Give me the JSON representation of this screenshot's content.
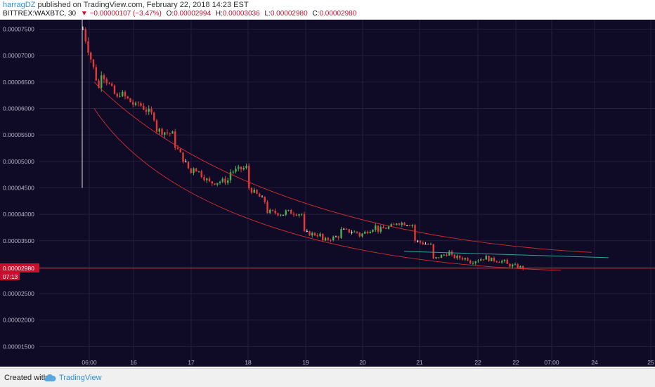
{
  "header": {
    "user": "harragDZ",
    "published": "published on TradingView.com, February 22, 2018 14:23 EST",
    "symbol": "BITTREX:WAXBTC, 30",
    "change_arrow": "▼",
    "change": "−0.00000107 (−3.47%)",
    "o_label": "O:",
    "o_value": "0.00002994",
    "h_label": "H:",
    "h_value": "0.00003036",
    "l_label": "L:",
    "l_value": "0.00002980",
    "c_label": "C:",
    "c_value": "0.00002980"
  },
  "footer": {
    "created_with": "Created with",
    "brand": "TradingView"
  },
  "chart_data": {
    "type": "candlestick",
    "symbol": "BITTREX:WAXBTC",
    "interval": "30",
    "y_ticks": [
      "0.00007500",
      "0.00007000",
      "0.00006500",
      "0.00006000",
      "0.00005500",
      "0.00005000",
      "0.00004500",
      "0.00004000",
      "0.00003500",
      "0.00003000",
      "0.00002500",
      "0.00002000",
      "0.00001500"
    ],
    "x_ticks": [
      "06:00",
      "16",
      "17",
      "18",
      "19",
      "20",
      "21",
      "22",
      "22",
      "07:00",
      "24",
      "25"
    ],
    "ylim": [
      1.12e-05,
      7.68e-05
    ],
    "last_price": "0.00002980",
    "countdown": "07:13",
    "grid": true,
    "background": "#0f0a26",
    "colors": {
      "up": "#4caf50",
      "down": "#e53935",
      "doji": "#e0e0e0",
      "curve": "#d32f2f",
      "trend": "#26a69a",
      "price_line": "#d32f2f"
    },
    "price_anchors": [
      [
        7.5e-05,
        6.2e-05
      ],
      [
        6.7e-05,
        6.1e-05
      ],
      [
        6.3e-05,
        6e-05
      ],
      [
        6.1e-05,
        5.8e-05
      ],
      [
        5.6e-05,
        5.5e-05
      ],
      [
        5.3e-05,
        4.7e-05
      ],
      [
        4.9e-05,
        4.55e-05
      ],
      [
        4.6e-05,
        4.65e-05
      ],
      [
        4.8e-05,
        4.9e-05
      ],
      [
        4.5e-05,
        4.2e-05
      ],
      [
        4.05e-05,
        4e-05
      ],
      [
        4.05e-05,
        4e-05
      ],
      [
        3.65e-05,
        3.6e-05
      ],
      [
        3.5e-05,
        3.6e-05
      ],
      [
        3.7e-05,
        3.65e-05
      ],
      [
        3.6e-05,
        3.8e-05
      ],
      [
        3.7e-05,
        3.8e-05
      ],
      [
        3.85e-05,
        3.8e-05
      ],
      [
        3.5e-05,
        3.4e-05
      ],
      [
        3.15e-05,
        3.3e-05
      ],
      [
        3.2e-05,
        3.15e-05
      ],
      [
        3.1e-05,
        3.2e-05
      ],
      [
        3.15e-05,
        3.1e-05
      ],
      [
        3.05e-05,
        2.98e-05
      ]
    ],
    "arc_upper": [
      [
        6.5e-05,
        3.3e-05
      ],
      [
        5.5e-05,
        4.1e-05
      ],
      [
        3.6e-05,
        3.25e-05
      ],
      [
        3.28e-05,
        3.27e-05
      ]
    ],
    "arc_lower": [
      [
        6e-05,
        3e-05
      ],
      [
        4.5e-05,
        3.5e-05
      ],
      [
        3.1e-05,
        2.96e-05
      ],
      [
        2.94e-05,
        2.93e-05
      ]
    ],
    "trend_line": [
      3.3e-05,
      3.18e-05
    ]
  }
}
